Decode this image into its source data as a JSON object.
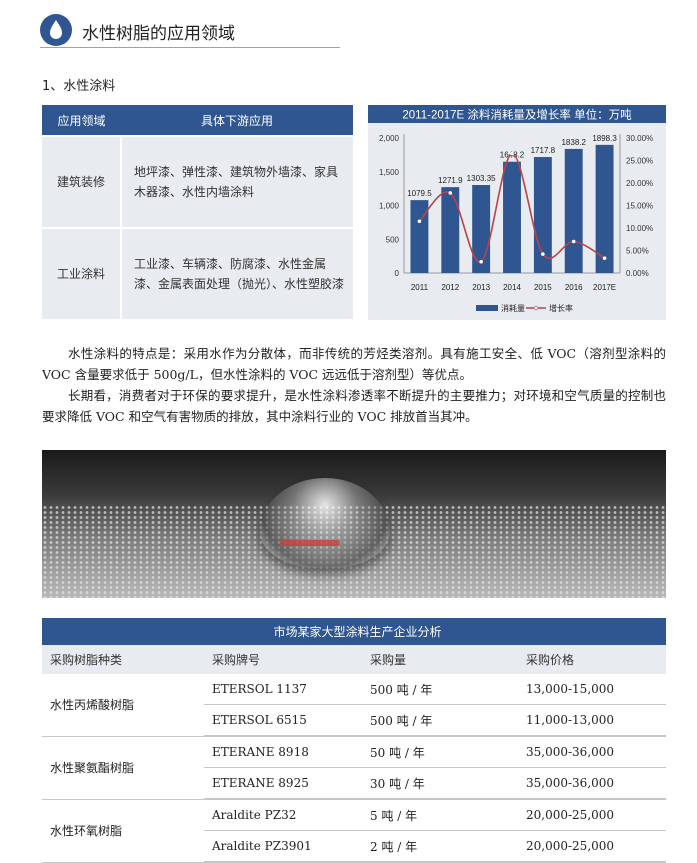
{
  "header": {
    "title": "水性树脂的应用领域",
    "icon": "water-drop-icon"
  },
  "section_title": "1、水性涂料",
  "application_table": {
    "headers": [
      "应用领域",
      "具体下游应用"
    ],
    "rows": [
      {
        "field": "建筑装修",
        "uses": "地坪漆、弹性漆、建筑物外墙漆、家具木器漆、水性内墙涂料"
      },
      {
        "field": "工业涂料",
        "uses": "工业漆、车辆漆、防腐漆、水性金属漆、金属表面处理（抛光）、水性塑胶漆"
      }
    ]
  },
  "chart_data": {
    "type": "bar+line",
    "title": "2011-2017E 涂料消耗量及增长率   单位：万吨",
    "categories": [
      "2011",
      "2012",
      "2013",
      "2014",
      "2015",
      "2016",
      "2017E"
    ],
    "series": [
      {
        "name": "消耗量",
        "type": "bar",
        "axis": "left",
        "values": [
          1079.5,
          1271.9,
          1303.35,
          1648.2,
          1717.8,
          1838.2,
          1898.3
        ],
        "labels": [
          "1079.5",
          "1271.9",
          "1303.35",
          "1648.2",
          "1717.8",
          "1838.2",
          "1898.3"
        ],
        "color": "#2f5690"
      },
      {
        "name": "增长率",
        "type": "line",
        "axis": "right",
        "values": [
          11.5,
          17.8,
          2.5,
          26.5,
          4.2,
          7.0,
          3.3
        ],
        "color": "#b8434a"
      }
    ],
    "left_axis": {
      "range": [
        0,
        2000
      ],
      "ticks": [
        "0",
        "500",
        "1,000",
        "1,500",
        "2,000"
      ]
    },
    "right_axis": {
      "range": [
        0,
        30
      ],
      "ticks": [
        "0.00%",
        "5.00%",
        "10.00%",
        "15.00%",
        "20.00%",
        "25.00%",
        "30.00%"
      ]
    },
    "legend": "bottom",
    "grid": false
  },
  "paragraphs": [
    "水性涂料的特点是：采用水作为分散体，而非传统的芳烃类溶剂。具有施工安全、低 VOC（溶剂型涂料的 VOC 含量要求低于 500g/L，但水性涂料的 VOC 远远低于溶剂型）等优点。",
    "长期看，消费者对于环保的要求提升，是水性涂料渗透率不断提升的主要推力；对环境和空气质量的控制也要求降低 VOC 和空气有害物质的排放，其中涂料行业的 VOC 排放首当其冲。"
  ],
  "enterprise_table": {
    "caption": "市场某家大型涂料生产企业分析",
    "headers": [
      "采购树脂种类",
      "采购牌号",
      "采购量",
      "采购价格"
    ],
    "groups": [
      {
        "type": "水性丙烯酸树脂",
        "rows": [
          [
            "ETERSOL 1137",
            "500 吨 / 年",
            "13,000-15,000"
          ],
          [
            "ETERSOL 6515",
            "500 吨 / 年",
            "11,000-13,000"
          ]
        ]
      },
      {
        "type": "水性聚氨酯树脂",
        "rows": [
          [
            "ETERANE 8918",
            "50 吨 / 年",
            "35,000-36,000"
          ],
          [
            "ETERANE 8925",
            "30 吨 / 年",
            "35,000-36,000"
          ]
        ]
      },
      {
        "type": "水性环氧树脂",
        "rows": [
          [
            "Araldite PZ32",
            "5 吨 / 年",
            "20,000-25,000"
          ],
          [
            "Araldite PZ3901",
            "2 吨 / 年",
            "20,000-25,000"
          ]
        ]
      }
    ]
  }
}
